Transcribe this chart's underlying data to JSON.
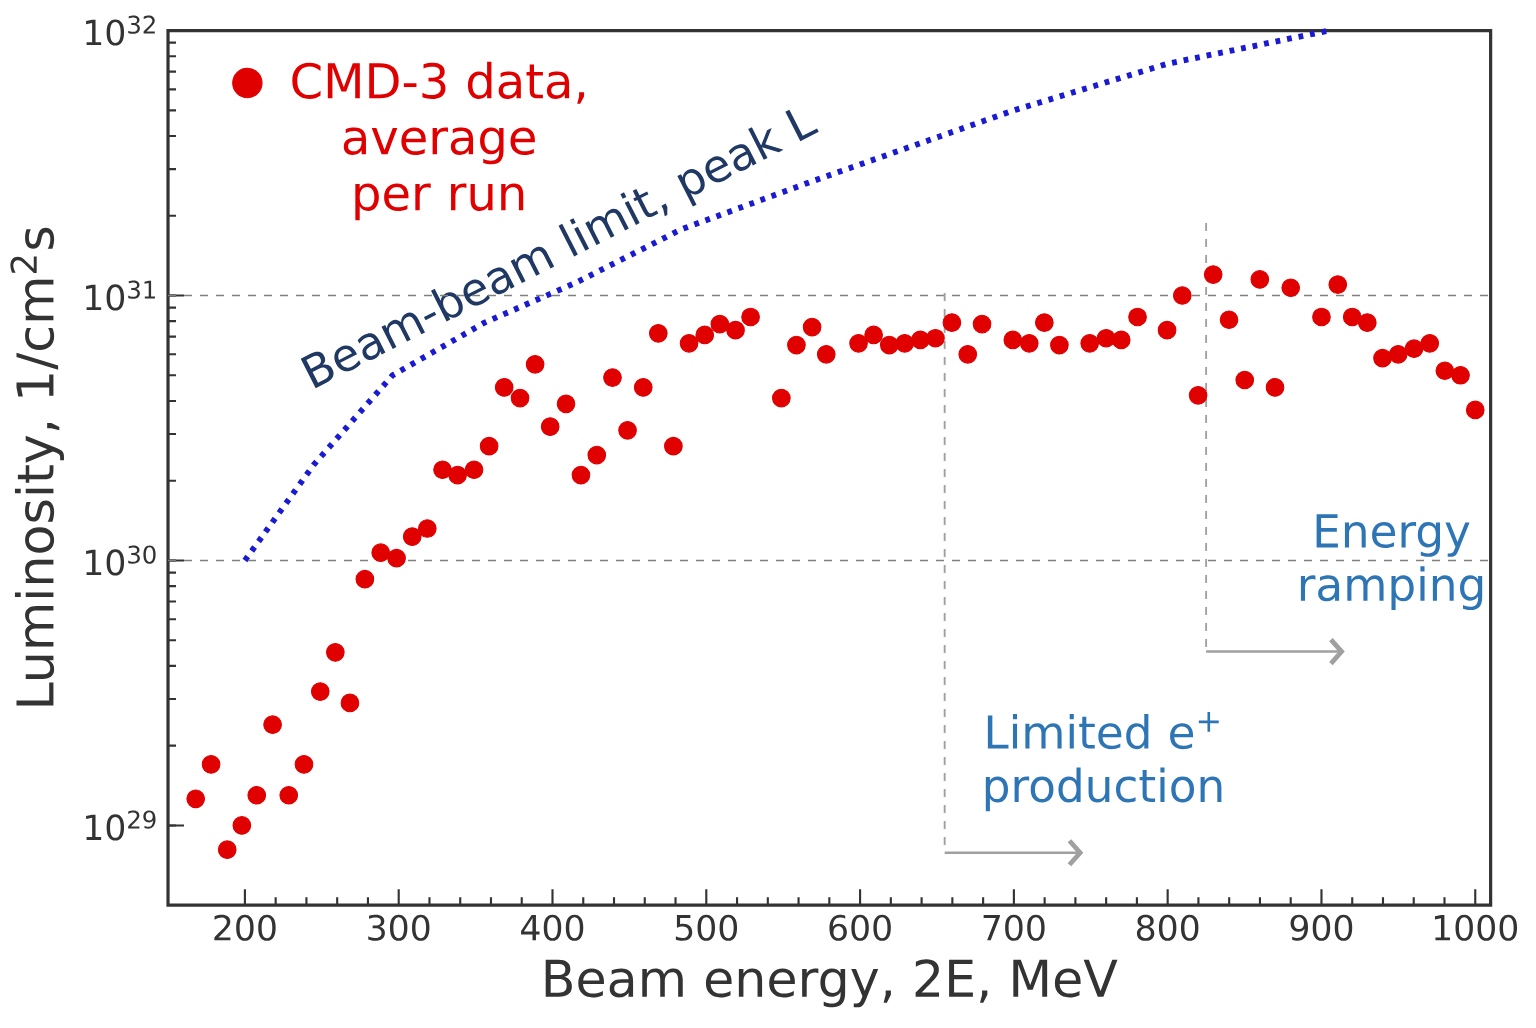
{
  "chart_data": {
    "type": "scatter",
    "xlabel": "Beam energy, 2E, MeV",
    "ylabel": "Luminosity, 1/cm$^{2}$s",
    "log": "y",
    "legend": "top left",
    "xlim": [
      150,
      1010
    ],
    "ylim": [
      5e+28,
      1e+32
    ],
    "xticks": [
      200,
      300,
      400,
      500,
      600,
      700,
      800,
      900,
      1000
    ],
    "yticks": [
      {
        "value": 1e+29,
        "label": "10$^{29}$"
      },
      {
        "value": 1e+30,
        "label": "10$^{30}$"
      },
      {
        "value": 1e+31,
        "label": "10$^{31}$"
      },
      {
        "value": 1e+32,
        "label": "10$^{32}$"
      }
    ],
    "ref_lines": [
      {
        "axis": "y",
        "value": 1e+30,
        "color": "#808080",
        "line_style": "dashed"
      },
      {
        "axis": "y",
        "value": 1e+31,
        "color": "#808080",
        "line_style": "dashed"
      },
      {
        "axis": "x",
        "value": 655,
        "label": "Limited e$^{+}$ production",
        "color": "#a0a0a0",
        "line_style": "dashed"
      },
      {
        "axis": "x",
        "value": 825,
        "label": "Energy ramping",
        "color": "#a0a0a0",
        "line_style": "dashed"
      }
    ],
    "series": [
      {
        "name": "CMD-3 data, average per run",
        "color": "#e00000",
        "marker": "circle",
        "x": [
          168,
          178,
          188.5,
          198,
          207.7,
          218,
          228.5,
          238.4,
          249,
          258.8,
          268.3,
          278,
          288.3,
          298.6,
          308.8,
          318.6,
          328.5,
          338.3,
          349,
          358.8,
          368.6,
          378.9,
          388.7,
          398.5,
          408.8,
          418.5,
          428.8,
          439,
          448.8,
          459,
          468.8,
          478.6,
          488.8,
          499,
          508.8,
          519,
          528.8,
          548.8,
          558.6,
          568.8,
          578,
          599,
          608.8,
          619,
          629,
          639.2,
          649,
          659.7,
          670,
          679.3,
          699.3,
          710,
          719.8,
          729.6,
          749.3,
          760,
          769.8,
          780.4,
          799.6,
          809.5,
          819.8,
          829.6,
          839.9,
          850.1,
          859.9,
          869.8,
          880,
          900,
          910.6,
          920,
          929.8,
          939.7,
          949.9,
          960.2,
          970.4,
          980.2,
          990.4,
          1000
        ],
        "values": [
          1.26e+29,
          1.7e+29,
          8.1e+28,
          1e+29,
          1.3e+29,
          2.4e+29,
          1.3e+29,
          1.7e+29,
          3.2e+29,
          4.5e+29,
          2.9e+29,
          8.5e+29,
          1.07e+30,
          1.02e+30,
          1.23e+30,
          1.32e+30,
          2.2e+30,
          2.1e+30,
          2.2e+30,
          2.7e+30,
          4.5e+30,
          4.1e+30,
          5.5e+30,
          3.2e+30,
          3.9e+30,
          2.1e+30,
          2.5e+30,
          4.9e+30,
          3.1e+30,
          4.5e+30,
          7.2e+30,
          2.7e+30,
          6.6e+30,
          7.1e+30,
          7.8e+30,
          7.4e+30,
          8.3e+30,
          4.1e+30,
          6.5e+30,
          7.6e+30,
          6e+30,
          6.6e+30,
          7.1e+30,
          6.5e+30,
          6.6e+30,
          6.8e+30,
          6.9e+30,
          7.9e+30,
          6e+30,
          7.8e+30,
          6.8e+30,
          6.6e+30,
          7.9e+30,
          6.5e+30,
          6.6e+30,
          6.9e+30,
          6.8e+30,
          8.3e+30,
          7.4e+30,
          1e+31,
          4.2e+30,
          1.2e+31,
          8.1e+30,
          4.8e+30,
          1.15e+31,
          4.5e+30,
          1.07e+31,
          8.3e+30,
          1.1e+31,
          8.3e+30,
          7.9e+30,
          5.8e+30,
          6e+30,
          6.3e+30,
          6.6e+30,
          5.2e+30,
          5e+30,
          3.7e+30
        ]
      },
      {
        "name": "Beam-beam limit, peak L",
        "type": "line",
        "line_style": "dotted",
        "marker": "none",
        "color": "#1a1ad0",
        "x": [
          200,
          244.8,
          296,
          355.8,
          415.5,
          484,
          569,
          700,
          800,
          905
        ],
        "values": [
          1e+30,
          2.3e+30,
          5e+30,
          7.9e+30,
          1.12e+31,
          1.78e+31,
          2.7e+31,
          5e+31,
          7.5e+31,
          1e+32
        ]
      }
    ]
  }
}
